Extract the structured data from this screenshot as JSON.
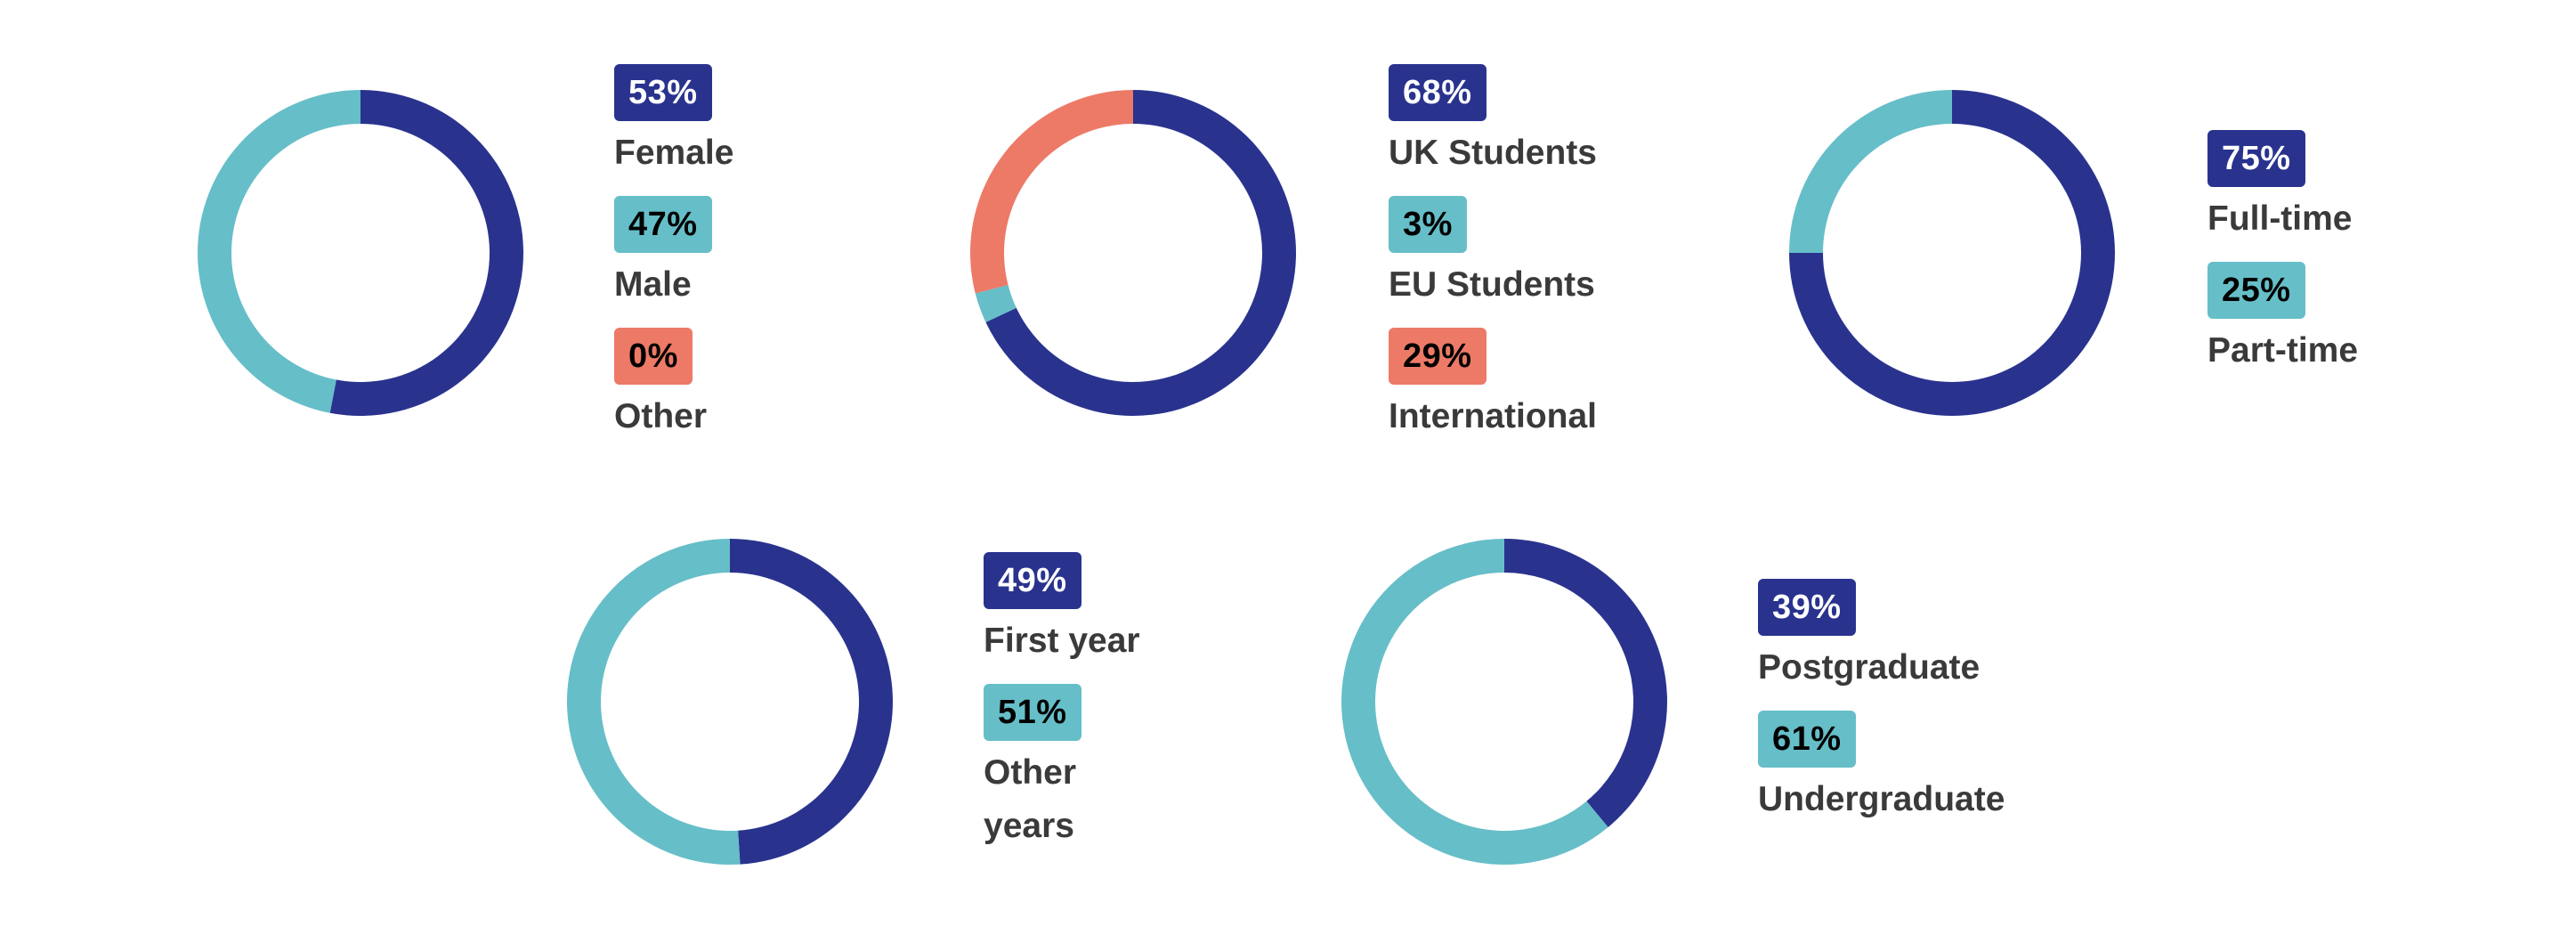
{
  "palette": {
    "navy": "#29338e",
    "teal": "#66bec8",
    "coral": "#ec7a67",
    "label": "#3a3a3a"
  },
  "chart_data": [
    {
      "type": "pie",
      "variant": "donut",
      "slices": [
        {
          "label": "Female",
          "value": 53,
          "display": "53%",
          "color": "#29338e",
          "text_color": "#ffffff"
        },
        {
          "label": "Male",
          "value": 47,
          "display": "47%",
          "color": "#66bec8",
          "text_color": "#000000"
        },
        {
          "label": "Other",
          "value": 0,
          "display": "0%",
          "color": "#ec7a67",
          "text_color": "#000000"
        }
      ]
    },
    {
      "type": "pie",
      "variant": "donut",
      "slices": [
        {
          "label": "UK Students",
          "value": 68,
          "display": "68%",
          "color": "#29338e",
          "text_color": "#ffffff"
        },
        {
          "label": "EU Students",
          "value": 3,
          "display": "3%",
          "color": "#66bec8",
          "text_color": "#000000"
        },
        {
          "label": "International",
          "value": 29,
          "display": "29%",
          "color": "#ec7a67",
          "text_color": "#000000"
        }
      ]
    },
    {
      "type": "pie",
      "variant": "donut",
      "slices": [
        {
          "label": "Full-time",
          "value": 75,
          "display": "75%",
          "color": "#29338e",
          "text_color": "#ffffff"
        },
        {
          "label": "Part-time",
          "value": 25,
          "display": "25%",
          "color": "#66bec8",
          "text_color": "#000000"
        }
      ]
    },
    {
      "type": "pie",
      "variant": "donut",
      "slices": [
        {
          "label": "First year",
          "value": 49,
          "display": "49%",
          "color": "#29338e",
          "text_color": "#ffffff"
        },
        {
          "label": "Other years",
          "value": 51,
          "display": "51%",
          "color": "#66bec8",
          "text_color": "#000000"
        }
      ]
    },
    {
      "type": "pie",
      "variant": "donut",
      "slices": [
        {
          "label": "Postgraduate",
          "value": 39,
          "display": "39%",
          "color": "#29338e",
          "text_color": "#ffffff"
        },
        {
          "label": "Undergraduate",
          "value": 61,
          "display": "61%",
          "color": "#66bec8",
          "text_color": "#000000"
        }
      ]
    }
  ]
}
